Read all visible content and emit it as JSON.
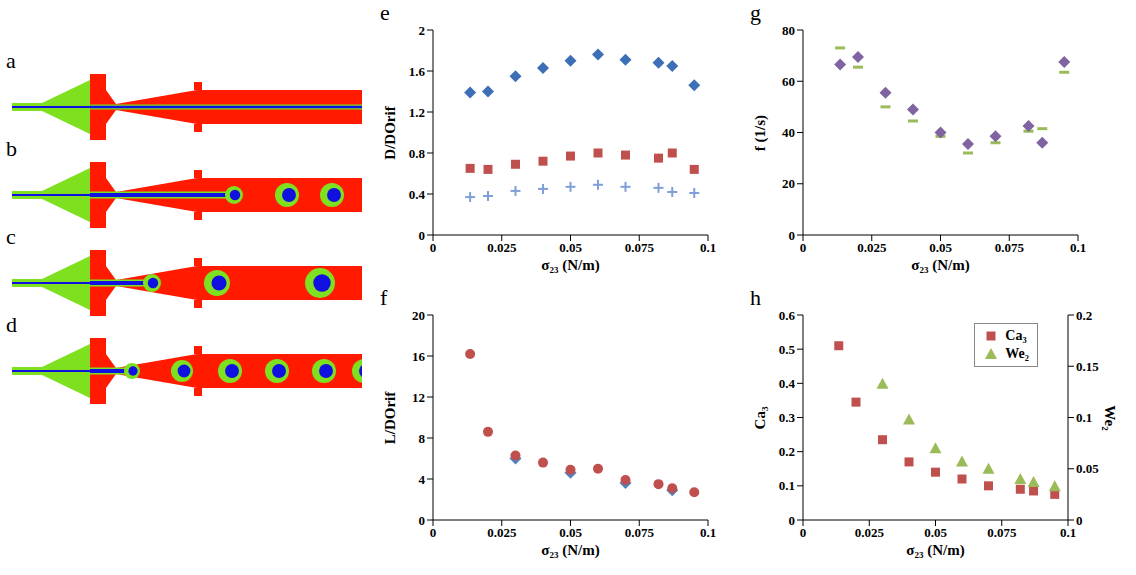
{
  "simulation_panels": [
    "a",
    "b",
    "c",
    "d"
  ],
  "chart_data": [
    {
      "label": "e",
      "type": "scatter",
      "x_label": "σ₂₃ (N/m)",
      "y_label": "D/DOrif",
      "xlim": [
        0,
        0.1
      ],
      "xticks": [
        0,
        0.025,
        0.05,
        0.075,
        0.1
      ],
      "ylim": [
        0,
        2
      ],
      "yticks": [
        0,
        0.4,
        0.8,
        1.2,
        1.6,
        2
      ],
      "series": [
        {
          "color": "#3d6fb6",
          "marker": "diamond",
          "x": [
            0.0135,
            0.02,
            0.03,
            0.04,
            0.05,
            0.06,
            0.07,
            0.082,
            0.087,
            0.095
          ],
          "values": [
            1.39,
            1.4,
            1.55,
            1.63,
            1.7,
            1.76,
            1.71,
            1.68,
            1.65,
            1.46
          ]
        },
        {
          "color": "#c0504d",
          "marker": "square",
          "x": [
            0.0135,
            0.02,
            0.03,
            0.04,
            0.05,
            0.06,
            0.07,
            0.082,
            0.087,
            0.095
          ],
          "values": [
            0.65,
            0.64,
            0.69,
            0.72,
            0.77,
            0.8,
            0.78,
            0.75,
            0.8,
            0.64
          ]
        },
        {
          "color": "#7f9fd6",
          "marker": "plus",
          "x": [
            0.0135,
            0.02,
            0.03,
            0.04,
            0.05,
            0.06,
            0.07,
            0.082,
            0.087,
            0.095
          ],
          "values": [
            0.37,
            0.38,
            0.43,
            0.45,
            0.47,
            0.49,
            0.47,
            0.46,
            0.42,
            0.41
          ]
        }
      ]
    },
    {
      "label": "f",
      "type": "scatter",
      "x_label": "σ₂₃ (N/m)",
      "y_label": "L/DOrif",
      "xlim": [
        0,
        0.1
      ],
      "xticks": [
        0,
        0.025,
        0.05,
        0.075,
        0.1
      ],
      "ylim": [
        0,
        20
      ],
      "yticks": [
        0,
        4,
        8,
        12,
        16,
        20
      ],
      "series": [
        {
          "color": "#4f81bd",
          "marker": "diamond",
          "x": [
            0.03,
            0.05,
            0.07,
            0.087
          ],
          "values": [
            6.0,
            4.6,
            3.6,
            2.9
          ]
        },
        {
          "color": "#c0504d",
          "marker": "circle",
          "x": [
            0.0135,
            0.02,
            0.03,
            0.04,
            0.05,
            0.06,
            0.07,
            0.082,
            0.087,
            0.095
          ],
          "values": [
            16.2,
            8.6,
            6.3,
            5.6,
            4.9,
            5.0,
            3.9,
            3.5,
            3.1,
            2.7
          ]
        }
      ]
    },
    {
      "label": "g",
      "type": "scatter",
      "x_label": "σ₂₃ (N/m)",
      "y_label": "f (1/s)",
      "xlim": [
        0,
        0.1
      ],
      "xticks": [
        0,
        0.025,
        0.05,
        0.075,
        0.1
      ],
      "ylim": [
        0,
        80
      ],
      "yticks": [
        0,
        20,
        40,
        60,
        80
      ],
      "series": [
        {
          "color": "#9bbb59",
          "marker": "dash",
          "x": [
            0.0135,
            0.02,
            0.03,
            0.04,
            0.05,
            0.06,
            0.07,
            0.082,
            0.087,
            0.095
          ],
          "values": [
            73,
            65.5,
            50,
            44.5,
            38.5,
            32,
            36,
            40.5,
            41.5,
            63.5
          ]
        },
        {
          "color": "#8064a2",
          "marker": "diamond",
          "x": [
            0.0135,
            0.02,
            0.03,
            0.04,
            0.05,
            0.06,
            0.07,
            0.082,
            0.087,
            0.095
          ],
          "values": [
            66.5,
            69.5,
            55.5,
            49,
            40,
            35.5,
            38.5,
            42.5,
            36,
            67.5
          ]
        }
      ]
    },
    {
      "label": "h",
      "type": "scatter",
      "x_label": "σ₂₃ (N/m)",
      "y_label": "Ca₃",
      "y2_label": "We₂",
      "xlim": [
        0,
        0.1
      ],
      "xticks": [
        0,
        0.025,
        0.05,
        0.075,
        0.1
      ],
      "ylim": [
        0,
        0.6
      ],
      "yticks": [
        0,
        0.1,
        0.2,
        0.3,
        0.4,
        0.5,
        0.6
      ],
      "y2lim": [
        0,
        0.2
      ],
      "y2ticks": [
        0,
        0.05,
        0.1,
        0.15,
        0.2
      ],
      "legend": "top right",
      "series": [
        {
          "name": "Ca₃",
          "color": "#c0504d",
          "marker": "square",
          "x": [
            0.0135,
            0.02,
            0.03,
            0.04,
            0.05,
            0.06,
            0.07,
            0.082,
            0.087,
            0.095
          ],
          "values": [
            0.51,
            0.345,
            0.235,
            0.17,
            0.14,
            0.12,
            0.1,
            0.09,
            0.085,
            0.075
          ]
        },
        {
          "name": "We₂",
          "color": "#9bbb59",
          "marker": "triangle",
          "axis": "y2",
          "x": [
            0.03,
            0.04,
            0.05,
            0.06,
            0.07,
            0.082,
            0.087,
            0.095
          ],
          "values": [
            0.133,
            0.098,
            0.07,
            0.057,
            0.05,
            0.04,
            0.037,
            0.033
          ]
        }
      ]
    }
  ]
}
